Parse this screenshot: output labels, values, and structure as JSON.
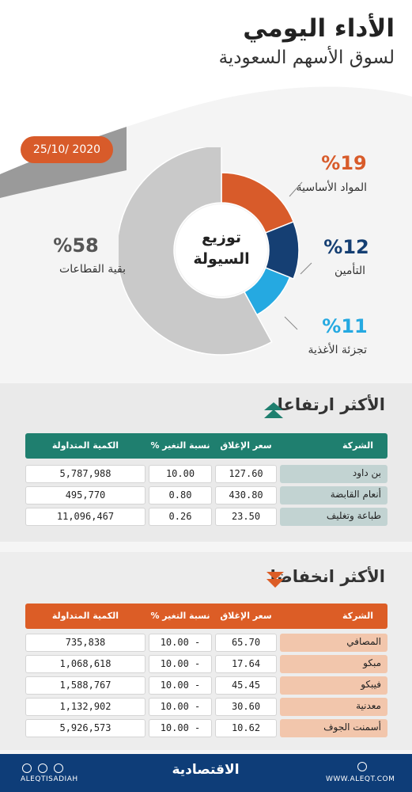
{
  "header": {
    "title_line1": "الأداء اليومي",
    "title_line2": "لسوق الأسهم السعودية",
    "date": "25/10/ 2020"
  },
  "donut": {
    "center_line1": "توزيع",
    "center_line2": "السيولة"
  },
  "chart_data": {
    "type": "pie",
    "categories": [
      "المواد الأساسية",
      "التأمين",
      "تجزئة الأغذية",
      "بقية القطاعات"
    ],
    "values": [
      19,
      12,
      11,
      58
    ],
    "labels": [
      "%19",
      "%12",
      "%11",
      "%58"
    ],
    "colors": [
      "#d85b2a",
      "#153f73",
      "#25a9e1",
      "#c9c9c9"
    ]
  },
  "gainers": {
    "title": "الأكثر ارتفاعا",
    "header_color": "#1f7f6f",
    "name_bg": "#c2d3d2",
    "columns": [
      "الشركة",
      "سعر الإغلاق",
      "نسبة التغير %",
      "الكمية المتداولة"
    ],
    "rows": [
      {
        "name": "بن داود",
        "close": "127.60",
        "change": "10.00",
        "volume": "5,787,988"
      },
      {
        "name": "أنعام القابضة",
        "close": "430.80",
        "change": "0.80",
        "volume": "495,770"
      },
      {
        "name": "طباعة وتغليف",
        "close": "23.50",
        "change": "0.26",
        "volume": "11,096,467"
      }
    ]
  },
  "losers": {
    "title": "الأكثر انخفاضا",
    "header_color": "#dc5d26",
    "name_bg": "#f2c6ac",
    "columns": [
      "الشركة",
      "سعر الإغلاق",
      "نسبة التغير %",
      "الكمية المتداولة"
    ],
    "rows": [
      {
        "name": "المصافي",
        "close": "65.70",
        "change": "10.00 -",
        "volume": "735,838"
      },
      {
        "name": "مبكو",
        "close": "17.64",
        "change": "10.00 -",
        "volume": "1,068,618"
      },
      {
        "name": "فيبكو",
        "close": "45.45",
        "change": "10.00 -",
        "volume": "1,588,767"
      },
      {
        "name": "معدنية",
        "close": "30.60",
        "change": "10.00 -",
        "volume": "1,132,902"
      },
      {
        "name": "أسمنت الجوف",
        "close": "10.62",
        "change": "10.00 -",
        "volume": "5,926,573"
      }
    ]
  },
  "footer": {
    "handle": "ALEQTISADIAH",
    "brand": "الاقتصادية",
    "website": "WWW.ALEQT.COM"
  }
}
